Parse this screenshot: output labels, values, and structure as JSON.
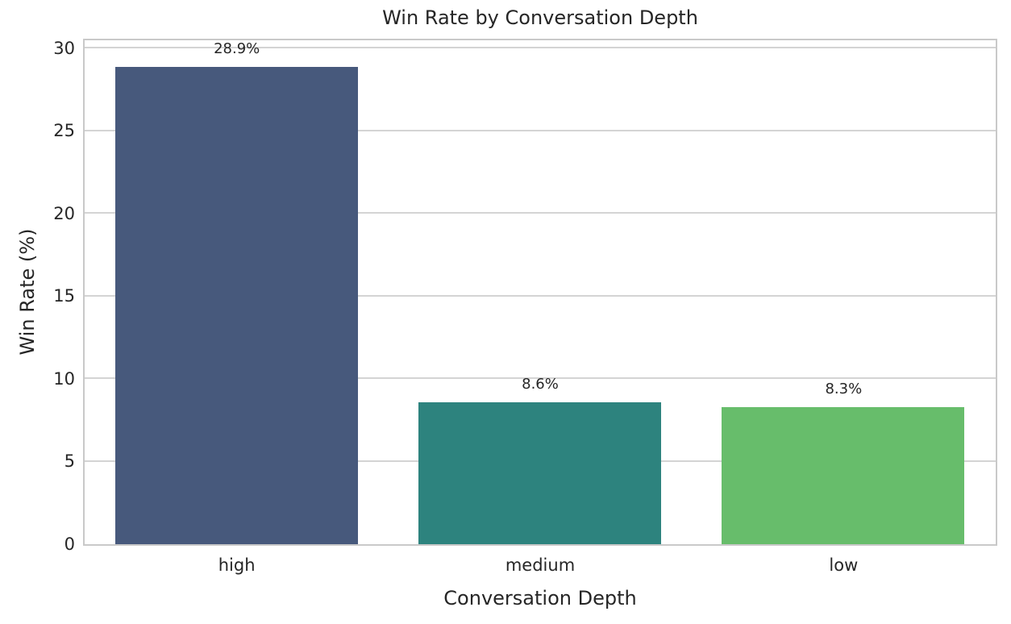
{
  "chart_data": {
    "type": "bar",
    "title": "Win Rate by Conversation Depth",
    "xlabel": "Conversation Depth",
    "ylabel": "Win Rate (%)",
    "categories": [
      "high",
      "medium",
      "low"
    ],
    "values": [
      28.9,
      8.6,
      8.3
    ],
    "bar_labels": [
      "28.9%",
      "8.6%",
      "8.3%"
    ],
    "bar_colors": [
      "#47597c",
      "#2d837e",
      "#67bd6b"
    ],
    "ylim": [
      0,
      30.45
    ],
    "yticks": [
      0,
      5,
      10,
      15,
      20,
      25,
      30
    ],
    "grid": "horizontal",
    "legend": "none",
    "bar_width_fraction": 0.8,
    "colors": {
      "background": "#ffffff",
      "grid_color": "#d4d4d4",
      "spine_color": "#c9c9c9",
      "text_color": "#262626"
    }
  }
}
